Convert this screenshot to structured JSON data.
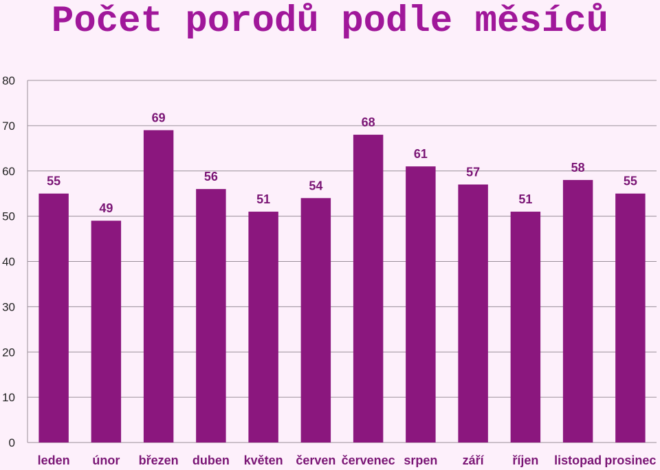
{
  "chart_data": {
    "type": "bar",
    "title": "Počet porodů podle měsíců",
    "categories": [
      "leden",
      "únor",
      "březen",
      "duben",
      "květen",
      "červen",
      "červenec",
      "srpen",
      "září",
      "říjen",
      "listopad",
      "prosinec"
    ],
    "values": [
      55,
      49,
      69,
      56,
      51,
      54,
      68,
      61,
      57,
      51,
      58,
      55
    ],
    "ylim": [
      0,
      80
    ],
    "yticks": [
      0,
      10,
      20,
      30,
      40,
      50,
      60,
      70,
      80
    ],
    "grid": true,
    "legend": "none",
    "bar_color": "#8b177e",
    "label_color": "#7a1575",
    "title_color": "#a0179a"
  }
}
